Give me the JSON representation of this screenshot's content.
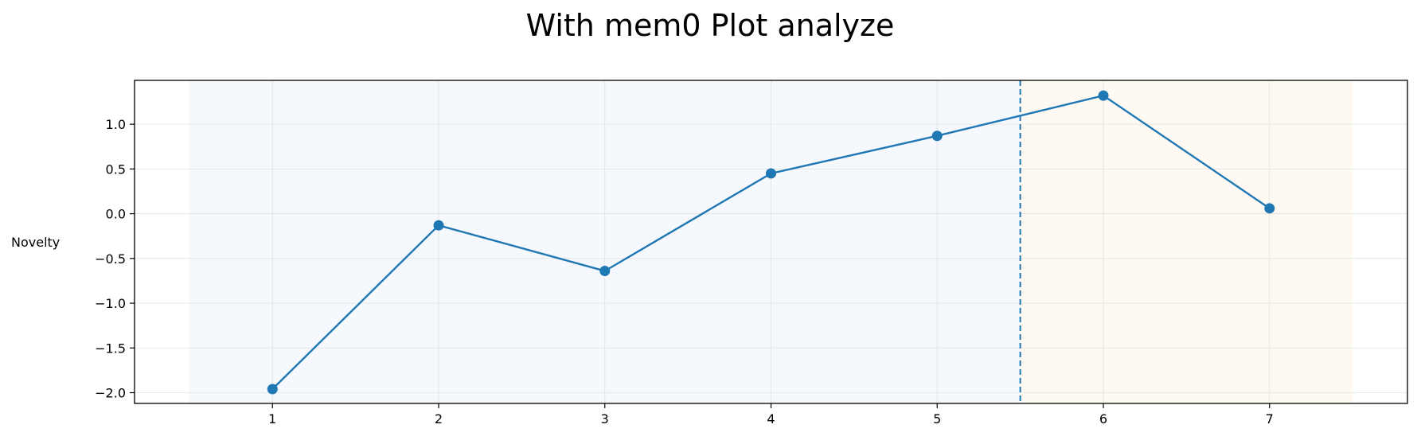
{
  "chart_data": {
    "type": "line",
    "title": "With mem0 Plot analyze",
    "xlabel": "",
    "ylabel": "Novelty",
    "x": [
      1,
      2,
      3,
      4,
      5,
      6,
      7
    ],
    "series": [
      {
        "values": [
          -1.96,
          -0.13,
          -0.64,
          0.45,
          0.87,
          1.32,
          0.06
        ]
      }
    ],
    "xlim": [
      0.17,
      7.83
    ],
    "ylim": [
      -2.12,
      1.49
    ],
    "xticks": [
      "1",
      "2",
      "3",
      "4",
      "5",
      "6",
      "7"
    ],
    "yticks": [
      "−2.0",
      "−1.5",
      "−1.0",
      "−0.5",
      "0.0",
      "0.5",
      "1.0"
    ],
    "ytick_values": [
      -2.0,
      -1.5,
      -1.0,
      -0.5,
      0.0,
      0.5,
      1.0
    ],
    "shaded_regions": [
      {
        "from": 0.5,
        "to": 5.5,
        "color": "#f5f8fc"
      },
      {
        "from": 5.5,
        "to": 7.5,
        "color": "#fef9f3"
      }
    ],
    "vline": {
      "x": 5.5,
      "style": "dashed",
      "color": "#1f77b4"
    },
    "line_color": "#1f77b4",
    "grid": true,
    "legend": "none"
  }
}
